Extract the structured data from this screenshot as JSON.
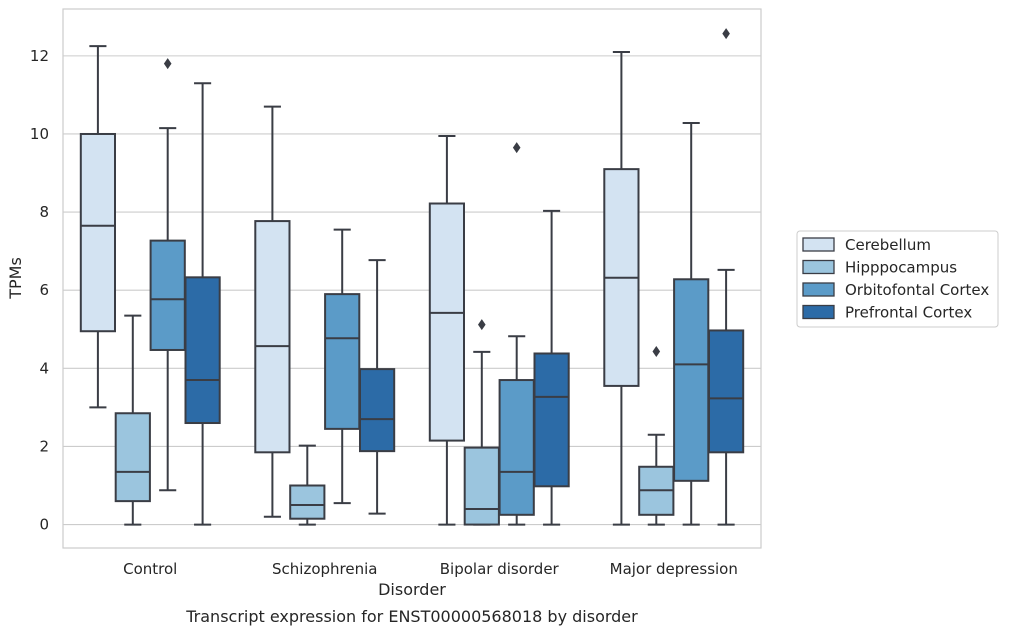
{
  "chart_data": {
    "type": "boxplot",
    "xlabel": "Disorder",
    "ylabel": "TPMs",
    "caption": "Transcript expression for ENST00000568018 by disorder",
    "ylim": [
      -0.6,
      13.2
    ],
    "yticks": [
      0,
      2,
      4,
      6,
      8,
      10,
      12
    ],
    "grid": "horizontal",
    "legend_position": "right",
    "categories": [
      "Control",
      "Schizophrenia",
      "Bipolar disorder",
      "Major depression"
    ],
    "series": [
      {
        "name": "Cerebellum",
        "color": "#d3e3f2",
        "boxes": [
          {
            "whisker_low": 3.0,
            "q1": 4.95,
            "median": 7.65,
            "q3": 10.0,
            "whisker_high": 12.25,
            "outliers": []
          },
          {
            "whisker_low": 0.2,
            "q1": 1.85,
            "median": 4.57,
            "q3": 7.77,
            "whisker_high": 10.7,
            "outliers": []
          },
          {
            "whisker_low": 0.0,
            "q1": 2.15,
            "median": 5.42,
            "q3": 8.22,
            "whisker_high": 9.95,
            "outliers": []
          },
          {
            "whisker_low": 0.0,
            "q1": 3.55,
            "median": 6.32,
            "q3": 9.1,
            "whisker_high": 12.1,
            "outliers": []
          }
        ]
      },
      {
        "name": "Hipppocampus",
        "color": "#9bc5de",
        "boxes": [
          {
            "whisker_low": 0.0,
            "q1": 0.6,
            "median": 1.35,
            "q3": 2.85,
            "whisker_high": 5.35,
            "outliers": []
          },
          {
            "whisker_low": 0.0,
            "q1": 0.15,
            "median": 0.5,
            "q3": 1.0,
            "whisker_high": 2.02,
            "outliers": []
          },
          {
            "whisker_low": 0.0,
            "q1": 0.0,
            "median": 0.4,
            "q3": 1.97,
            "whisker_high": 4.42,
            "outliers": [
              5.12
            ]
          },
          {
            "whisker_low": 0.0,
            "q1": 0.25,
            "median": 0.88,
            "q3": 1.48,
            "whisker_high": 2.3,
            "outliers": [
              4.43
            ]
          }
        ]
      },
      {
        "name": "Orbitofontal Cortex",
        "color": "#5b9bc8",
        "boxes": [
          {
            "whisker_low": 0.88,
            "q1": 4.47,
            "median": 5.77,
            "q3": 7.27,
            "whisker_high": 10.15,
            "outliers": [
              11.8
            ]
          },
          {
            "whisker_low": 0.55,
            "q1": 2.45,
            "median": 4.77,
            "q3": 5.9,
            "whisker_high": 7.55,
            "outliers": []
          },
          {
            "whisker_low": 0.0,
            "q1": 0.25,
            "median": 1.35,
            "q3": 3.7,
            "whisker_high": 4.82,
            "outliers": [
              9.65
            ]
          },
          {
            "whisker_low": 0.0,
            "q1": 1.12,
            "median": 4.1,
            "q3": 6.28,
            "whisker_high": 10.28,
            "outliers": []
          }
        ]
      },
      {
        "name": "Prefrontal Cortex",
        "color": "#2c6ba7",
        "boxes": [
          {
            "whisker_low": 0.0,
            "q1": 2.6,
            "median": 3.7,
            "q3": 6.33,
            "whisker_high": 11.3,
            "outliers": []
          },
          {
            "whisker_low": 0.28,
            "q1": 1.88,
            "median": 2.7,
            "q3": 3.98,
            "whisker_high": 6.77,
            "outliers": []
          },
          {
            "whisker_low": 0.0,
            "q1": 0.98,
            "median": 3.27,
            "q3": 4.38,
            "whisker_high": 8.03,
            "outliers": []
          },
          {
            "whisker_low": 0.0,
            "q1": 1.85,
            "median": 3.23,
            "q3": 4.97,
            "whisker_high": 6.52,
            "outliers": [
              12.57
            ]
          }
        ]
      }
    ]
  }
}
